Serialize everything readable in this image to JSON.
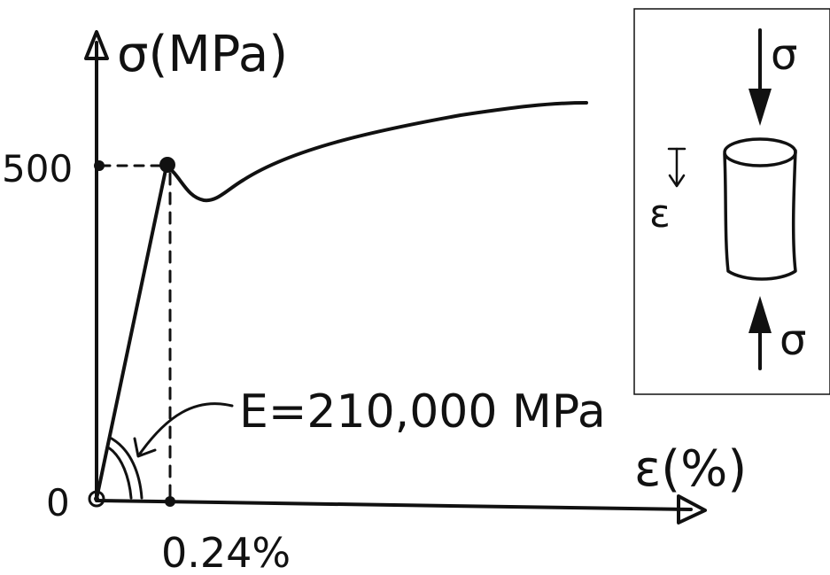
{
  "y_axis": {
    "label": "σ(MPa)",
    "ticks": [
      "500",
      "0"
    ]
  },
  "x_axis": {
    "label": "ε(%)",
    "tick": "0.24%"
  },
  "modulus_annotation": "E=210,000 MPa",
  "inset": {
    "stress_top": "σ",
    "stress_bottom": "σ",
    "strain": "ε"
  },
  "curve": {
    "yield_stress": 500,
    "yield_strain_percent": 0.24,
    "youngs_modulus_MPa": 210000
  },
  "colors": {
    "ink": "#111111",
    "background": "#ffffff"
  }
}
